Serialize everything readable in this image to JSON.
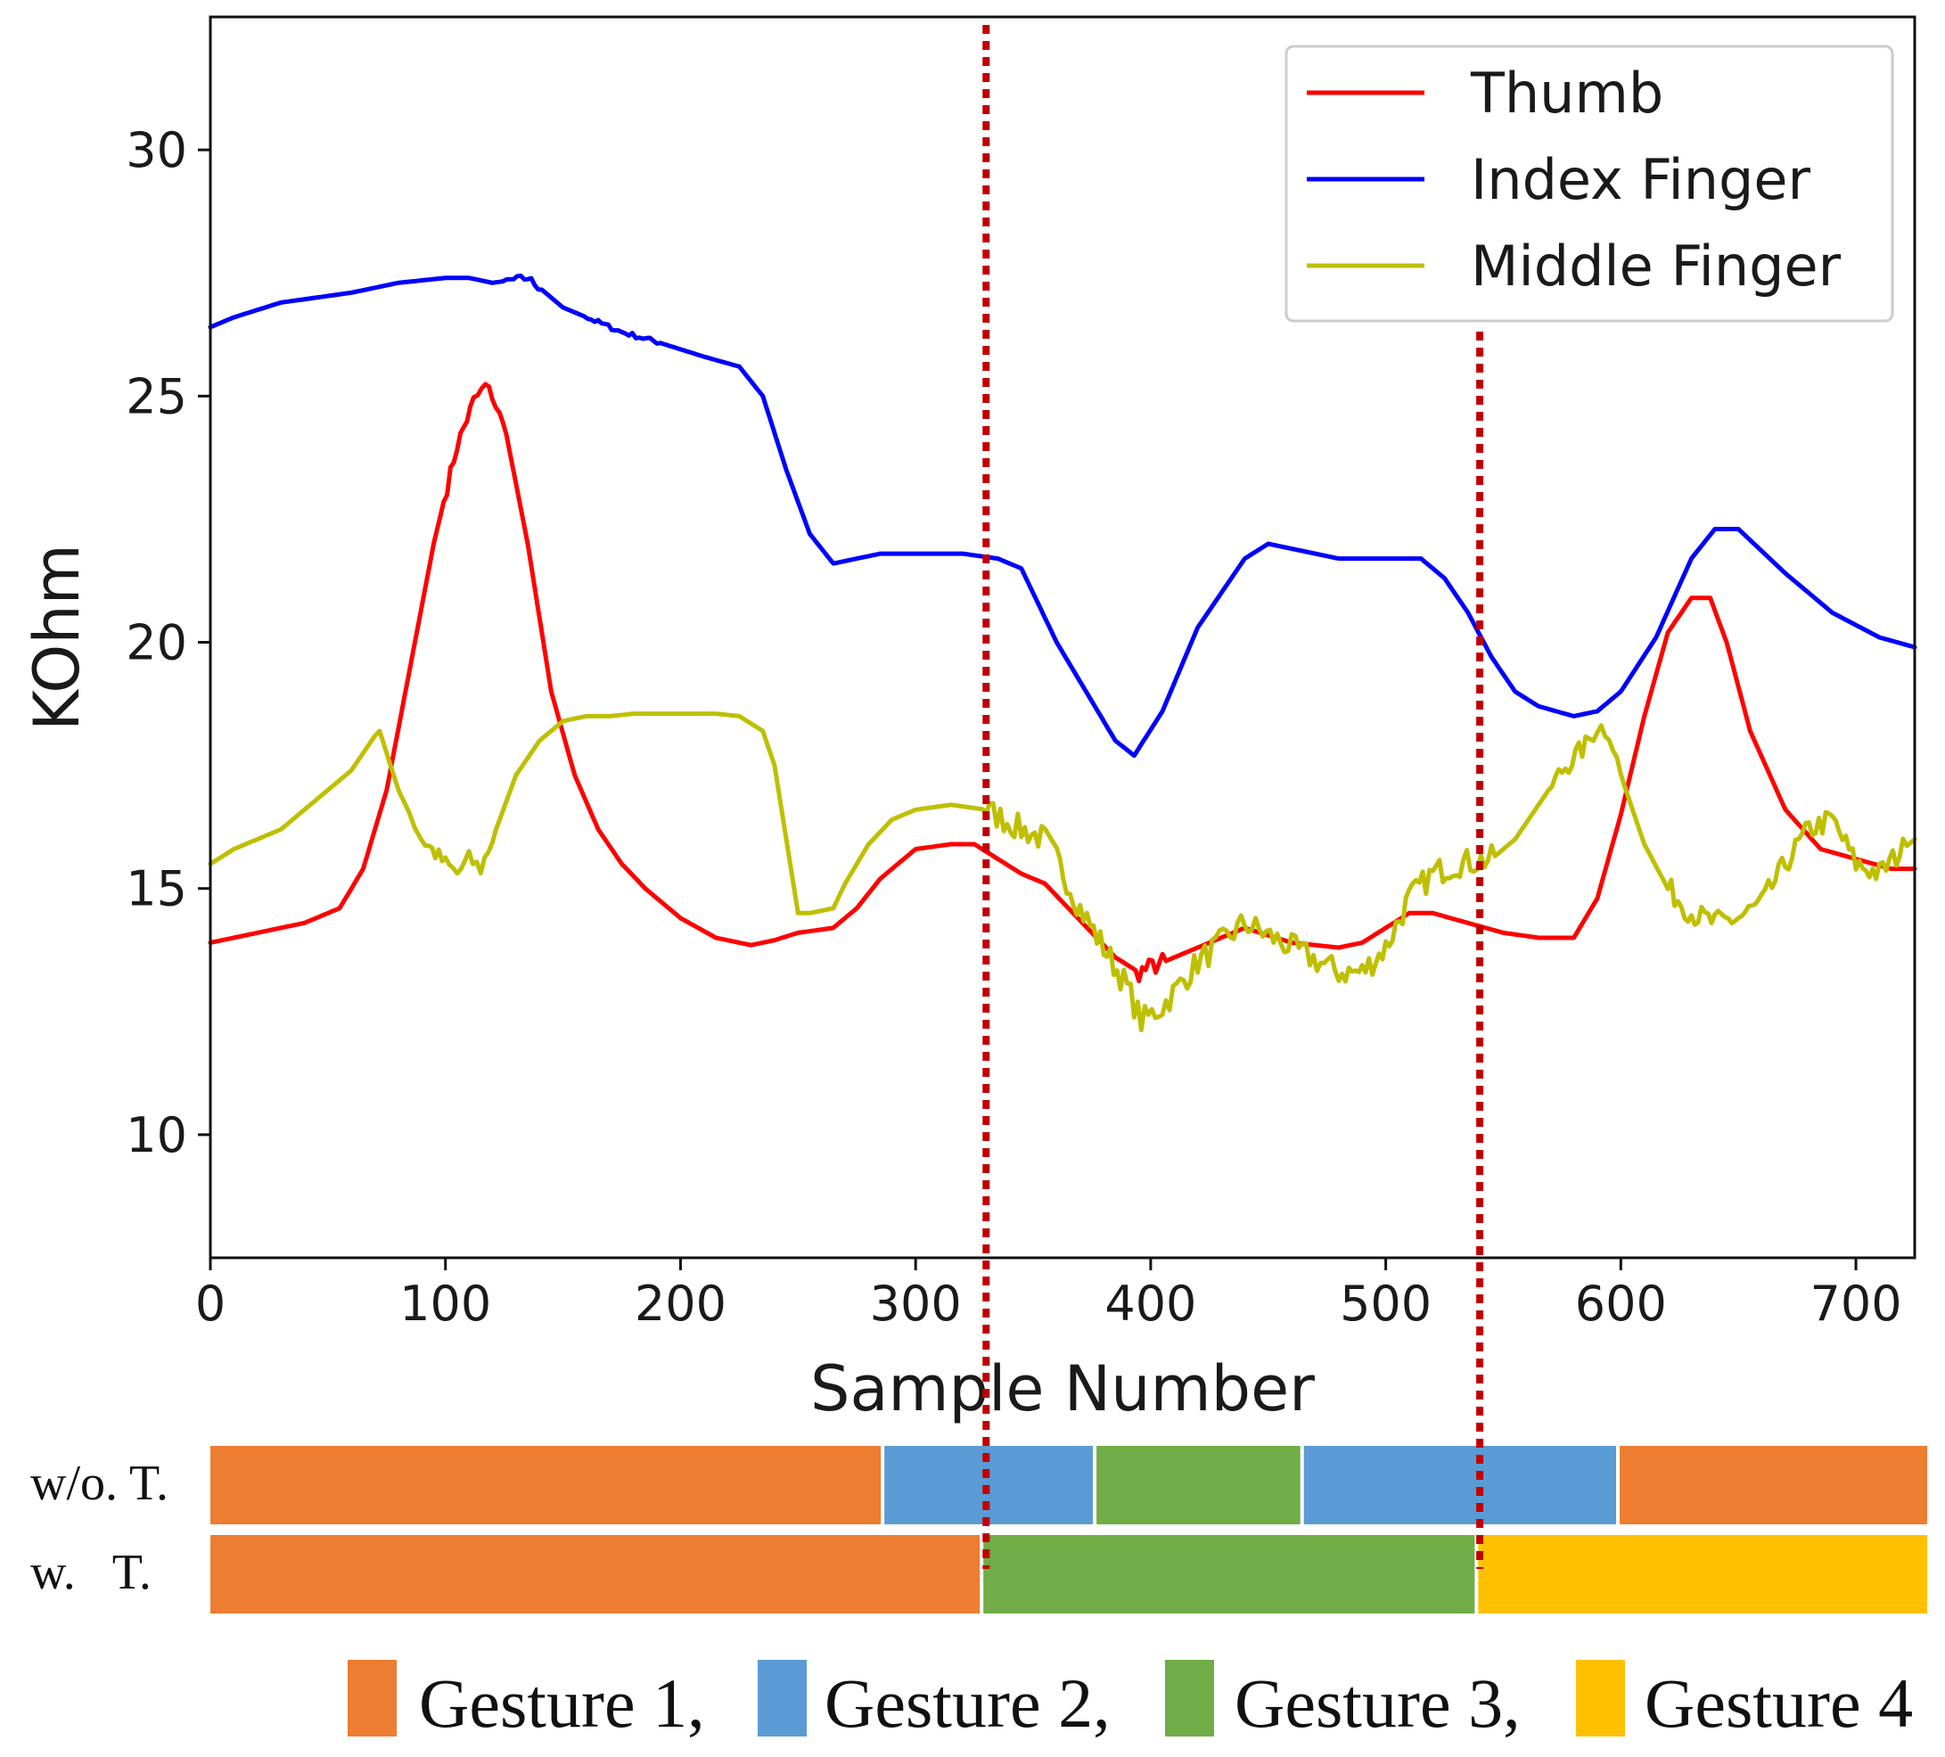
{
  "chart_data": {
    "type": "line",
    "xlabel": "Sample Number",
    "ylabel": "KOhm",
    "xlim": [
      0,
      725
    ],
    "ylim": [
      7.5,
      32.7
    ],
    "xticks": [
      0,
      100,
      200,
      300,
      400,
      500,
      600,
      700
    ],
    "yticks": [
      10,
      15,
      20,
      25,
      30
    ],
    "grid": false,
    "legend_position": "top-right",
    "series": [
      {
        "name": "Thumb",
        "color": "#ff0000",
        "x": [
          0,
          20,
          40,
          55,
          65,
          75,
          85,
          95,
          105,
          112,
          117,
          120,
          126,
          135,
          145,
          155,
          165,
          175,
          185,
          200,
          215,
          230,
          240,
          250,
          265,
          275,
          285,
          300,
          315,
          325,
          335,
          345,
          355,
          365,
          375,
          385,
          395,
          405,
          420,
          440,
          460,
          480,
          490,
          500,
          510,
          520,
          535,
          550,
          565,
          580,
          590,
          600,
          610,
          620,
          630,
          638,
          645,
          655,
          670,
          685,
          700,
          715,
          725
        ],
        "y": [
          13.9,
          14.1,
          14.3,
          14.6,
          15.4,
          17.0,
          19.5,
          22.0,
          24.0,
          24.9,
          25.2,
          25.0,
          24.2,
          22.0,
          19.0,
          17.3,
          16.2,
          15.5,
          15.0,
          14.4,
          14.0,
          13.85,
          13.95,
          14.1,
          14.2,
          14.6,
          15.2,
          15.8,
          15.9,
          15.9,
          15.6,
          15.3,
          15.1,
          14.6,
          14.1,
          13.6,
          13.3,
          13.5,
          13.8,
          14.2,
          13.9,
          13.8,
          13.9,
          14.2,
          14.5,
          14.5,
          14.3,
          14.1,
          14.0,
          14.0,
          14.8,
          16.5,
          18.5,
          20.2,
          20.9,
          20.9,
          20.0,
          18.2,
          16.6,
          15.8,
          15.6,
          15.4,
          15.4
        ],
        "noise": [
          [
            100,
            125,
            0.15
          ],
          [
            395,
            405,
            0.2
          ]
        ]
      },
      {
        "name": "Index Finger",
        "color": "#0000ff",
        "x": [
          0,
          10,
          30,
          60,
          80,
          100,
          110,
          120,
          135,
          150,
          165,
          175,
          190,
          210,
          225,
          235,
          245,
          255,
          265,
          275,
          285,
          300,
          320,
          335,
          345,
          350,
          360,
          375,
          385,
          393,
          405,
          420,
          440,
          450,
          460,
          480,
          500,
          515,
          525,
          535,
          545,
          555,
          565,
          580,
          590,
          600,
          615,
          630,
          640,
          650,
          670,
          690,
          710,
          725
        ],
        "y": [
          26.4,
          26.6,
          26.9,
          27.1,
          27.3,
          27.4,
          27.4,
          27.3,
          27.4,
          26.8,
          26.5,
          26.3,
          26.1,
          25.8,
          25.6,
          25.0,
          23.5,
          22.2,
          21.6,
          21.7,
          21.8,
          21.8,
          21.8,
          21.7,
          21.5,
          21.0,
          20.0,
          18.8,
          18.0,
          17.7,
          18.6,
          20.3,
          21.7,
          22.0,
          21.9,
          21.7,
          21.7,
          21.7,
          21.3,
          20.6,
          19.7,
          19.0,
          18.7,
          18.5,
          18.6,
          19.0,
          20.1,
          21.7,
          22.3,
          22.3,
          21.4,
          20.6,
          20.1,
          19.9
        ],
        "noise": [
          [
            125,
            140,
            0.08
          ],
          [
            160,
            190,
            0.05
          ]
        ]
      },
      {
        "name": "Middle Finger",
        "color": "#bfbf00",
        "x": [
          0,
          10,
          20,
          30,
          40,
          50,
          60,
          70,
          72,
          80,
          90,
          100,
          105,
          110,
          115,
          120,
          130,
          140,
          150,
          160,
          170,
          180,
          190,
          200,
          215,
          225,
          235,
          240,
          245,
          250,
          255,
          265,
          270,
          280,
          290,
          300,
          315,
          330,
          345,
          355,
          360,
          370,
          380,
          390,
          396,
          405,
          420,
          440,
          460,
          480,
          490,
          500,
          510,
          520,
          530,
          545,
          555,
          565,
          575,
          585,
          590,
          595,
          600,
          610,
          620,
          630,
          640,
          650,
          660,
          670,
          680,
          690,
          700,
          710,
          720,
          725
        ],
        "y": [
          15.5,
          15.8,
          16.0,
          16.2,
          16.6,
          17.0,
          17.4,
          18.1,
          18.2,
          17.0,
          16.0,
          15.5,
          15.3,
          15.6,
          15.4,
          16.0,
          17.3,
          18.0,
          18.4,
          18.5,
          18.5,
          18.55,
          18.55,
          18.55,
          18.55,
          18.5,
          18.2,
          17.5,
          16.0,
          14.5,
          14.5,
          14.6,
          15.1,
          15.9,
          16.4,
          16.6,
          16.7,
          16.6,
          16.2,
          16.0,
          15.6,
          14.6,
          13.8,
          13.0,
          12.3,
          12.6,
          13.5,
          14.3,
          13.8,
          13.3,
          13.3,
          13.8,
          14.8,
          15.3,
          15.5,
          15.6,
          16.0,
          16.7,
          17.4,
          17.9,
          18.3,
          18.2,
          17.3,
          15.9,
          15.0,
          14.5,
          14.3,
          14.4,
          14.7,
          15.5,
          16.2,
          16.4,
          15.5,
          15.3,
          15.8,
          16.0
        ],
        "noise": [
          [
            85,
            120,
            0.18
          ],
          [
            330,
            545,
            0.28
          ],
          [
            570,
            600,
            0.22
          ],
          [
            620,
            720,
            0.25
          ]
        ]
      }
    ],
    "vlines": [
      330,
      540
    ],
    "gesture_rows": [
      {
        "label": "w/o. T.",
        "segments": [
          {
            "from": 0,
            "to": 286,
            "gesture": 1
          },
          {
            "from": 286,
            "to": 376,
            "gesture": 2
          },
          {
            "from": 376,
            "to": 464,
            "gesture": 3
          },
          {
            "from": 464,
            "to": 598,
            "gesture": 2
          },
          {
            "from": 598,
            "to": 730,
            "gesture": 1
          }
        ]
      },
      {
        "label": "w.   T.",
        "segments": [
          {
            "from": 0,
            "to": 328,
            "gesture": 1
          },
          {
            "from": 328,
            "to": 538,
            "gesture": 3
          },
          {
            "from": 538,
            "to": 730,
            "gesture": 4
          }
        ]
      }
    ],
    "gesture_legend": [
      {
        "gesture": 1,
        "label": "Gesture 1,",
        "color": "#ed7d31"
      },
      {
        "gesture": 2,
        "label": "Gesture 2,",
        "color": "#5b9bd5"
      },
      {
        "gesture": 3,
        "label": "Gesture 3,",
        "color": "#70ad47"
      },
      {
        "gesture": 4,
        "label": "Gesture 4",
        "color": "#ffc000"
      }
    ],
    "vline_color": "#c00000"
  }
}
